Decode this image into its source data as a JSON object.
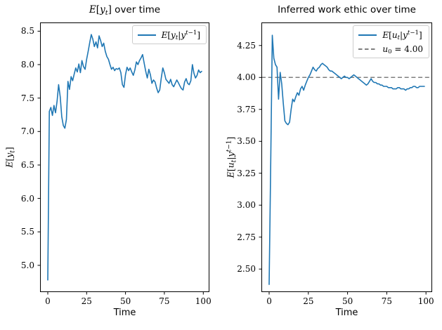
{
  "figure": {
    "background": "#ffffff",
    "spine_color": "#000000",
    "accent_color": "#1f77b4",
    "ref_color": "#7f7f7f",
    "legend_edge_color": "#cccccc"
  },
  "chart_data": {
    "charts": [
      {
        "type": "line",
        "title_math": "E[y_t]",
        "title_text": " over time",
        "xlabel": "Time",
        "ylabel": "E[y_t]",
        "xlim": [
          -4.95,
          103.95
        ],
        "ylim": [
          4.6,
          8.63
        ],
        "x_ticks": [
          0,
          25,
          50,
          75,
          100
        ],
        "y_ticks": [
          "5.0",
          "5.5",
          "6.0",
          "6.5",
          "7.0",
          "7.5",
          "8.0",
          "8.5"
        ],
        "grid": false,
        "legend_loc": "upper right",
        "x0": 0,
        "dx": 1,
        "legend": [
          {
            "label": "E[y_t|y^{t-1}]",
            "color": "#1f77b4",
            "dash": false
          }
        ],
        "series": [
          {
            "name": "E[y_t|y^{t-1}]",
            "color": "#1f77b4",
            "dash": false,
            "values": [
              4.78,
              7.3,
              7.36,
              7.24,
              7.39,
              7.28,
              7.45,
              7.7,
              7.52,
              7.22,
              7.09,
              7.05,
              7.18,
              7.75,
              7.63,
              7.82,
              7.76,
              7.86,
              7.95,
              7.89,
              8.01,
              7.88,
              8.06,
              7.97,
              7.93,
              8.08,
              8.2,
              8.33,
              8.45,
              8.38,
              8.27,
              8.34,
              8.25,
              8.43,
              8.36,
              8.27,
              8.32,
              8.2,
              8.12,
              8.08,
              8.0,
              7.93,
              7.96,
              7.91,
              7.94,
              7.93,
              7.95,
              7.88,
              7.7,
              7.66,
              7.85,
              7.96,
              7.91,
              7.95,
              7.89,
              7.84,
              7.92,
              8.04,
              8.0,
              8.06,
              8.1,
              8.15,
              8.02,
              7.9,
              7.8,
              7.93,
              7.85,
              7.72,
              7.77,
              7.74,
              7.65,
              7.58,
              7.62,
              7.8,
              7.95,
              7.88,
              7.78,
              7.75,
              7.72,
              7.78,
              7.7,
              7.67,
              7.72,
              7.77,
              7.73,
              7.68,
              7.64,
              7.62,
              7.74,
              7.79,
              7.72,
              7.7,
              7.76,
              8.0,
              7.87,
              7.8,
              7.84,
              7.92,
              7.88,
              7.9
            ]
          }
        ]
      },
      {
        "type": "line",
        "title_math": "",
        "title_text": "Inferred work ethic over time",
        "xlabel": "Time",
        "ylabel": "E[u_t|y^{t-1}]",
        "xlim": [
          -4.95,
          103.95
        ],
        "ylim": [
          2.32,
          4.43
        ],
        "x_ticks": [
          0,
          25,
          50,
          75,
          100
        ],
        "y_ticks": [
          "2.50",
          "2.75",
          "3.00",
          "3.25",
          "3.50",
          "3.75",
          "4.00",
          "4.25"
        ],
        "grid": false,
        "legend_loc": "upper right",
        "x0": 0,
        "dx": 1,
        "ref_line": {
          "value": 4.0,
          "label": "u_0 = 4.00",
          "color": "#7f7f7f",
          "dash": true
        },
        "legend": [
          {
            "label": "E[u_t|y^{t-1}]",
            "color": "#1f77b4",
            "dash": false
          },
          {
            "label": "u_0 = 4.00",
            "color": "#7f7f7f",
            "dash": true
          }
        ],
        "series": [
          {
            "name": "E[u_t|y^{t-1}]",
            "color": "#1f77b4",
            "dash": false,
            "values": [
              2.38,
              3.35,
              4.33,
              4.15,
              4.1,
              4.08,
              3.83,
              4.04,
              3.95,
              3.8,
              3.66,
              3.64,
              3.63,
              3.65,
              3.75,
              3.83,
              3.81,
              3.85,
              3.88,
              3.86,
              3.91,
              3.93,
              3.9,
              3.94,
              3.97,
              4.0,
              4.02,
              4.05,
              4.08,
              4.06,
              4.05,
              4.07,
              4.08,
              4.1,
              4.11,
              4.1,
              4.09,
              4.08,
              4.06,
              4.05,
              4.05,
              4.04,
              4.03,
              4.02,
              4.01,
              4.0,
              3.99,
              4.0,
              4.01,
              4.0,
              4.0,
              3.99,
              4.0,
              4.01,
              4.02,
              4.01,
              4.0,
              3.99,
              3.98,
              3.97,
              3.96,
              3.95,
              3.94,
              3.95,
              3.97,
              3.99,
              3.97,
              3.96,
              3.96,
              3.95,
              3.95,
              3.94,
              3.94,
              3.93,
              3.93,
              3.93,
              3.92,
              3.92,
              3.92,
              3.91,
              3.91,
              3.91,
              3.92,
              3.92,
              3.91,
              3.91,
              3.91,
              3.9,
              3.91,
              3.91,
              3.92,
              3.92,
              3.93,
              3.93,
              3.92,
              3.92,
              3.93,
              3.93,
              3.93,
              3.93
            ]
          }
        ]
      }
    ]
  }
}
